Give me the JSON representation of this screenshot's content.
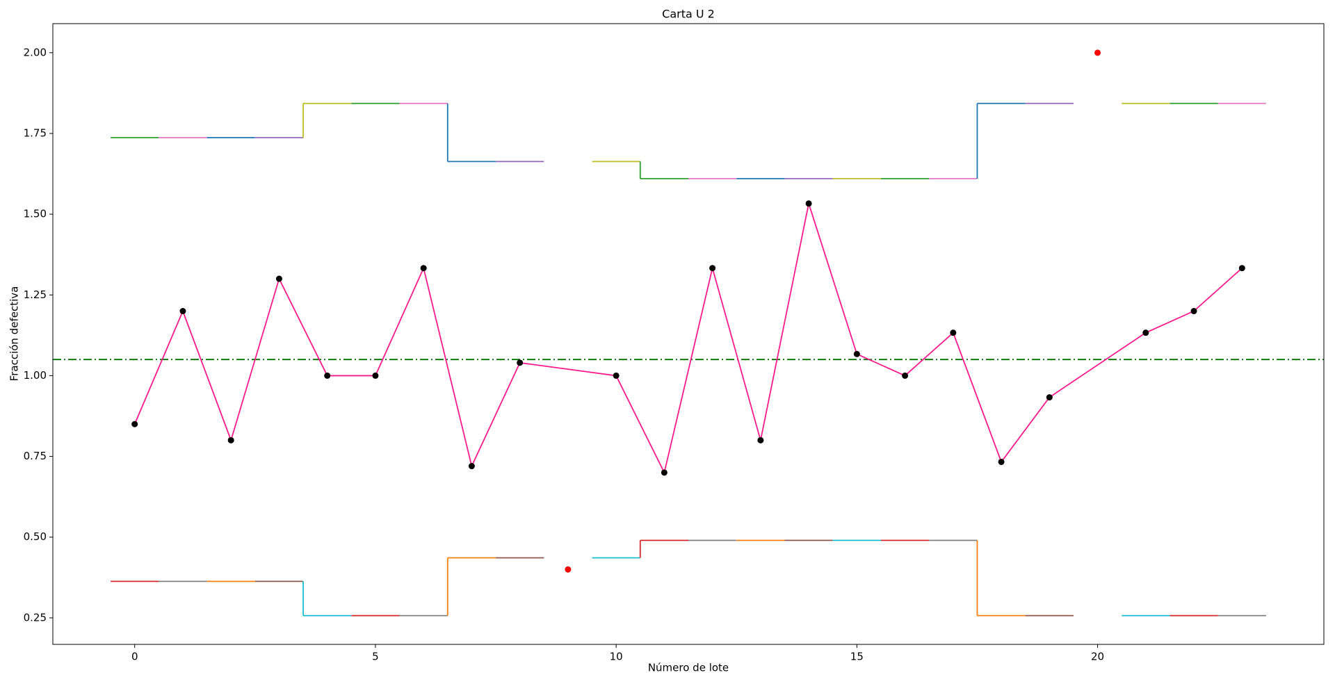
{
  "chart_data": {
    "type": "line",
    "title": "Carta U 2",
    "x_label": "Número de lote",
    "y_label": "Fracción defectiva",
    "xlim": [
      -1.7,
      24.7
    ],
    "ylim": [
      0.168,
      2.09
    ],
    "xticks": [
      0,
      5,
      10,
      15,
      20
    ],
    "yticks": [
      {
        "value": 0.25,
        "label": "0.25"
      },
      {
        "value": 0.5,
        "label": "0.50"
      },
      {
        "value": 0.75,
        "label": "0.75"
      },
      {
        "value": 1.0,
        "label": "1.00"
      },
      {
        "value": 1.25,
        "label": "1.25"
      },
      {
        "value": 1.5,
        "label": "1.50"
      },
      {
        "value": 1.75,
        "label": "1.75"
      },
      {
        "value": 2.0,
        "label": "2.00"
      }
    ],
    "center_line": {
      "value": 1.05,
      "color": "#007000"
    },
    "series": [
      {
        "style": "line",
        "color": "#ff1a8c",
        "marker_color": "#000000",
        "x": [
          0,
          1,
          2,
          3,
          4,
          5,
          6,
          7,
          8,
          10,
          11,
          12,
          13,
          14,
          15,
          16,
          17,
          18,
          19,
          21,
          22,
          23
        ],
        "values": [
          0.85,
          1.2,
          0.8,
          1.3,
          1.0,
          1.0,
          1.333,
          0.72,
          1.04,
          1.0,
          0.7,
          1.333,
          0.8,
          1.533,
          1.067,
          1.0,
          1.133,
          0.733,
          0.933,
          1.133,
          1.2,
          1.333
        ]
      },
      {
        "style": "points",
        "color": "#ff0000",
        "x": [
          9,
          20
        ],
        "values": [
          0.4,
          2.0
        ]
      }
    ],
    "ucl": {
      "colors": [
        "#2ca02c",
        "#e377c2",
        "#1f77b4",
        "#9467bd",
        "#bcbd22"
      ],
      "x": [
        0,
        1,
        2,
        3,
        4,
        5,
        6,
        7,
        8,
        10,
        11,
        12,
        13,
        14,
        15,
        16,
        17,
        18,
        19,
        21,
        22,
        23
      ],
      "values": [
        1.737,
        1.737,
        1.737,
        1.737,
        1.843,
        1.843,
        1.843,
        1.663,
        1.663,
        1.663,
        1.61,
        1.61,
        1.61,
        1.61,
        1.61,
        1.61,
        1.61,
        1.843,
        1.843,
        1.843,
        1.843,
        1.843
      ]
    },
    "lcl": {
      "colors": [
        "#d62728",
        "#7f7f7f",
        "#ff7f0e",
        "#8c564b",
        "#17becf"
      ],
      "x": [
        0,
        1,
        2,
        3,
        4,
        5,
        6,
        7,
        8,
        10,
        11,
        12,
        13,
        14,
        15,
        16,
        17,
        18,
        19,
        21,
        22,
        23
      ],
      "values": [
        0.363,
        0.363,
        0.363,
        0.363,
        0.257,
        0.257,
        0.257,
        0.436,
        0.436,
        0.436,
        0.49,
        0.49,
        0.49,
        0.49,
        0.49,
        0.49,
        0.49,
        0.257,
        0.257,
        0.257,
        0.257,
        0.257
      ]
    }
  }
}
